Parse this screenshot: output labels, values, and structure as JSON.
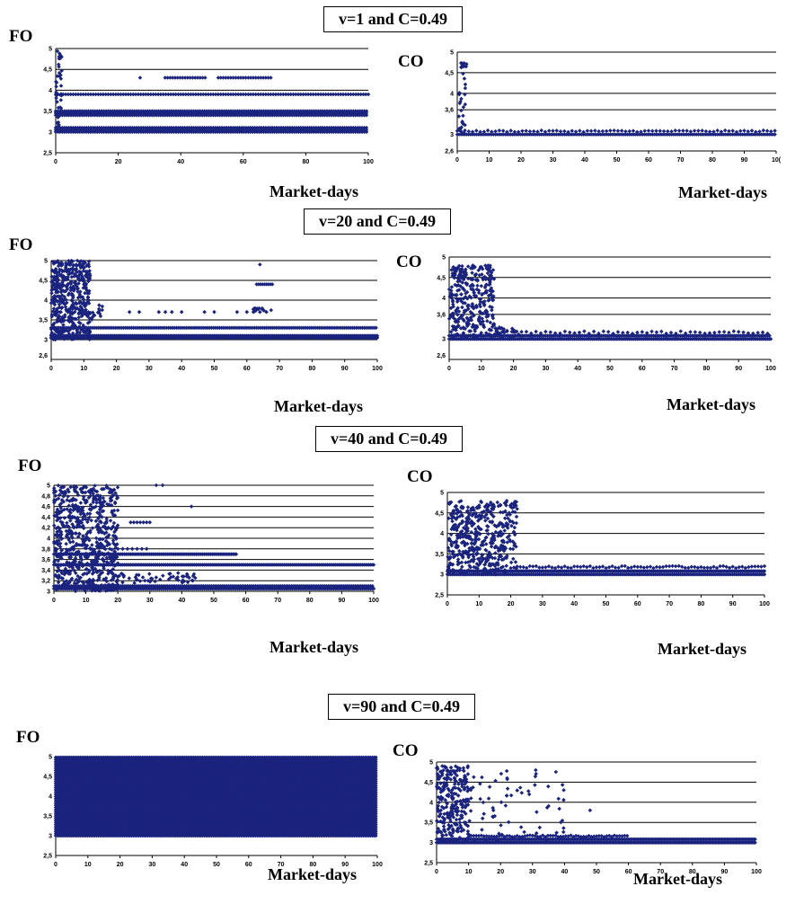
{
  "colors": {
    "marker": "#1a237e",
    "grid": "#000000",
    "axis": "#000000"
  },
  "chart_data": [
    {
      "type": "scatter",
      "group_title": "v=1 and C=0.49",
      "title": "FO",
      "xlabel": "Market-days",
      "xlim": [
        0,
        100
      ],
      "ylim": [
        2.5,
        5
      ],
      "xticks": [
        "0",
        "20",
        "40",
        "60",
        "80",
        "100"
      ],
      "yticks": [
        "2,5",
        "3",
        "3,5",
        "4",
        "4,5",
        "5"
      ],
      "pattern": "dense bands at 3.0-3.1 and 3.4-3.5 across all days; band at 3.9 across; band at 4.3 between days 35-70; spike toward 5 near day 1"
    },
    {
      "type": "scatter",
      "title": "CO",
      "xlabel": "Market-days",
      "xlim": [
        0,
        100
      ],
      "ylim": [
        2.6,
        5
      ],
      "xticks": [
        "0",
        "10",
        "20",
        "30",
        "40",
        "50",
        "60",
        "70",
        "80",
        "90",
        "10("
      ],
      "yticks": [
        "2,6",
        "3",
        "3,6",
        "4",
        "4,5",
        "5"
      ],
      "pattern": "spike to 4.8 at day 1, then flat near 3.0-3.1"
    },
    {
      "type": "scatter",
      "group_title": "v=20 and C=0.49",
      "title": "FO",
      "xlabel": "Market-days",
      "xlim": [
        0,
        100
      ],
      "ylim": [
        2.5,
        5
      ],
      "xticks": [
        "0",
        "10",
        "20",
        "30",
        "40",
        "50",
        "60",
        "70",
        "80",
        "90",
        "100"
      ],
      "yticks": [
        "2,6",
        "3",
        "3,5",
        "4",
        "4,5",
        "5"
      ],
      "pattern": "dense 3.0-5.0 for days 0-12; bands at 3.1 and 3.3 across; scattered 3.7 points; cluster near 4.4-4.9 at day 65"
    },
    {
      "type": "scatter",
      "title": "CO",
      "xlabel": "Market-days",
      "xlim": [
        0,
        100
      ],
      "ylim": [
        2.5,
        5
      ],
      "xticks": [
        "0",
        "10",
        "20",
        "30",
        "40",
        "50",
        "60",
        "70",
        "80",
        "90",
        "100"
      ],
      "yticks": [
        "2,6",
        "3",
        "3,6",
        "4",
        "4,5",
        "5"
      ],
      "pattern": "dense scatter 3.0-4.8 days 0-15, then flat near 3.05-3.2"
    },
    {
      "type": "scatter",
      "group_title": "v=40 and C=0.49",
      "title": "FO",
      "xlabel": "Market-days",
      "xlim": [
        0,
        100
      ],
      "ylim": [
        3,
        5
      ],
      "xticks": [
        "0",
        "10",
        "20",
        "30",
        "40",
        "50",
        "60",
        "70",
        "80",
        "90",
        "100"
      ],
      "yticks": [
        "3",
        "3,2",
        "3,4",
        "3,6",
        "3,8",
        "4",
        "4,2",
        "4,4",
        "4,6",
        "4,8",
        "5"
      ],
      "pattern": "dense 3.0-5.0 days 0-20; band at 3.7 to day 57; bands at 3.5 and 3.05 across"
    },
    {
      "type": "scatter",
      "title": "CO",
      "xlabel": "Market-days",
      "xlim": [
        0,
        100
      ],
      "ylim": [
        2.5,
        5
      ],
      "xticks": [
        "0",
        "10",
        "20",
        "30",
        "40",
        "50",
        "60",
        "70",
        "80",
        "90",
        "100"
      ],
      "yticks": [
        "2,5",
        "3",
        "3,5",
        "4",
        "4,5",
        "5"
      ],
      "pattern": "dense scatter 3.0-4.8 days 0-22, then 3.0-3.2 across"
    },
    {
      "type": "scatter",
      "group_title": "v=90 and C=0.49",
      "title": "FO",
      "xlabel": "Market-days",
      "xlim": [
        0,
        100
      ],
      "ylim": [
        2.5,
        5
      ],
      "xticks": [
        "0",
        "10",
        "20",
        "30",
        "40",
        "50",
        "60",
        "70",
        "80",
        "90",
        "100"
      ],
      "yticks": [
        "2,5",
        "3",
        "3,5",
        "4",
        "4,5",
        "5"
      ],
      "pattern": "fully dense 3.0-5.0 across all days"
    },
    {
      "type": "scatter",
      "title": "CO",
      "xlabel": "Market-days",
      "xlim": [
        0,
        100
      ],
      "ylim": [
        2.5,
        5
      ],
      "xticks": [
        "0",
        "10",
        "20",
        "30",
        "40",
        "50",
        "60",
        "70",
        "80",
        "90",
        "100"
      ],
      "yticks": [
        "2,5",
        "3",
        "3,5",
        "4",
        "4,5",
        "5"
      ],
      "pattern": "dense scatter 3.0-4.9 days 0-40, then flat near 3.05-3.1"
    }
  ]
}
